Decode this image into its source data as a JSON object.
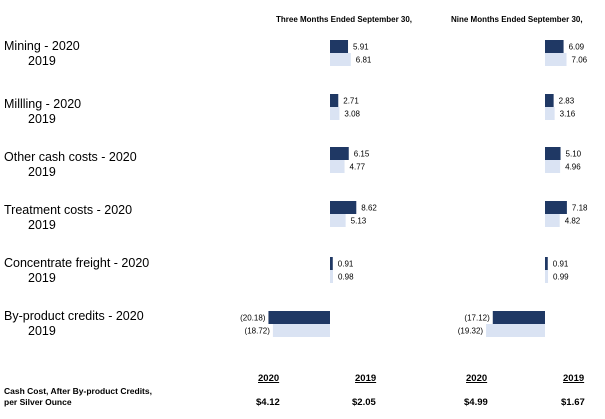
{
  "chart_data": {
    "type": "bar",
    "orientation": "horizontal",
    "panel_headers": [
      "Three Months Ended September 30,",
      "Nine Months Ended September 30,"
    ],
    "categories": [
      {
        "label": "Mining  - 2020",
        "prior_label": "2019"
      },
      {
        "label": "Millling - 2020",
        "prior_label": "2019"
      },
      {
        "label": "Other cash costs  - 2020",
        "prior_label": "2019"
      },
      {
        "label": "Treatment costs  - 2020",
        "prior_label": "2019"
      },
      {
        "label": "Concentrate freight  - 2020",
        "prior_label": "2019"
      },
      {
        "label": "By-product credits  - 2020",
        "prior_label": "2019"
      }
    ],
    "panels": [
      {
        "series": [
          {
            "values": [
              5.91,
              2.71,
              6.15,
              8.62,
              0.91,
              -20.18
            ],
            "labels": [
              "5.91",
              "2.71",
              "6.15",
              "8.62",
              "0.91",
              "(20.18)"
            ],
            "color": "#1f3864"
          },
          {
            "values": [
              6.81,
              3.08,
              4.77,
              5.13,
              0.98,
              -18.72
            ],
            "labels": [
              "6.81",
              "3.08",
              "4.77",
              "5.13",
              "0.98",
              "(18.72)"
            ],
            "color": "#dae3f3"
          }
        ]
      },
      {
        "series": [
          {
            "values": [
              6.09,
              2.83,
              5.1,
              7.18,
              0.91,
              -17.12
            ],
            "labels": [
              "6.09",
              "2.83",
              "5.10",
              "7.18",
              "0.91",
              "(17.12)"
            ],
            "color": "#1f3864"
          },
          {
            "values": [
              7.06,
              3.16,
              4.96,
              4.82,
              0.99,
              -19.32
            ],
            "labels": [
              "7.06",
              "3.16",
              "4.96",
              "4.82",
              "0.99",
              "(19.32)"
            ],
            "color": "#dae3f3"
          }
        ]
      }
    ]
  },
  "totals": {
    "label_line1": "Cash Cost, After By-product Credits,",
    "label_line2": "per Silver Ounce",
    "columns": [
      {
        "year": "2020",
        "value": "$4.12"
      },
      {
        "year": "2019",
        "value": "$2.05"
      },
      {
        "year": "2020",
        "value": "$4.99"
      },
      {
        "year": "2019",
        "value": "$1.67"
      }
    ]
  }
}
